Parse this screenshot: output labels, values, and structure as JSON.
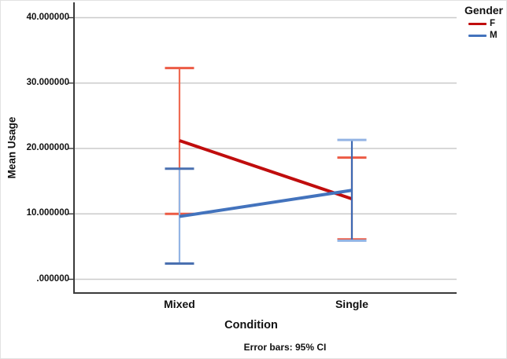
{
  "chart_data": {
    "type": "line",
    "xlabel": "Condition",
    "ylabel": "Mean Usage",
    "caption": "Error bars: 95% CI",
    "categories": [
      "Mixed",
      "Single"
    ],
    "y_tick_labels": [
      "40.000000",
      "30.000000",
      "20.000000",
      "10.000000",
      ".000000"
    ],
    "y_tick_values": [
      40,
      30,
      20,
      10,
      0
    ],
    "ylim": [
      0,
      40
    ],
    "grid": true,
    "legend": {
      "title": "Gender",
      "position": "top-right"
    },
    "error_bars": "95% CI",
    "colors": {
      "grid": "#cbcbcb",
      "axis": "#3a3a3a",
      "text": "#111111"
    },
    "series": [
      {
        "name": "F",
        "line_color": "#c00d0d",
        "means": [
          21.2,
          12.3
        ],
        "ci_low": [
          10.0,
          6.1
        ],
        "ci_high": [
          32.3,
          18.6
        ],
        "errorbar_line_colors": [
          "#ee6c54",
          "#ee6c54"
        ],
        "errorbar_cap_colors": [
          "#ec5b45",
          "#ec5b45"
        ]
      },
      {
        "name": "M",
        "line_color": "#4373bd",
        "means": [
          9.6,
          13.6
        ],
        "ci_low": [
          2.4,
          5.9
        ],
        "ci_high": [
          16.9,
          21.3
        ],
        "errorbar_line_colors": [
          "#93b4e4",
          "#3c68b2"
        ],
        "errorbar_cap_colors": [
          "#4a70b0",
          "#93b4e4"
        ]
      }
    ]
  }
}
